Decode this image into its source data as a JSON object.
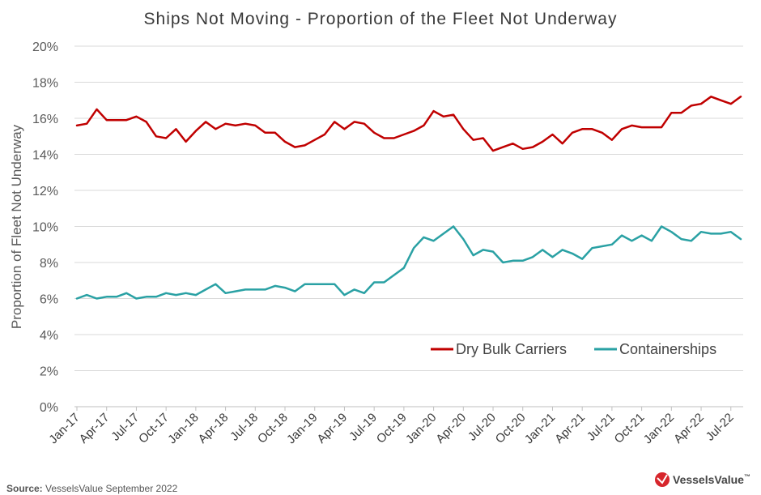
{
  "chart_data": {
    "type": "line",
    "title": "Ships Not Moving - Proportion of the Fleet Not Underway",
    "ylabel": "Proportion of Fleet Not Underway",
    "xlabel": "",
    "ylim": [
      0,
      20
    ],
    "yticks": [
      "0%",
      "2%",
      "4%",
      "6%",
      "8%",
      "10%",
      "12%",
      "14%",
      "16%",
      "18%",
      "20%"
    ],
    "x_tick_labels": [
      "Jan-17",
      "Apr-17",
      "Jul-17",
      "Oct-17",
      "Jan-18",
      "Apr-18",
      "Jul-18",
      "Oct-18",
      "Jan-19",
      "Apr-19",
      "Jul-19",
      "Oct-19",
      "Jan-20",
      "Apr-20",
      "Jul-20",
      "Oct-20",
      "Jan-21",
      "Apr-21",
      "Jul-21",
      "Oct-21",
      "Jan-22",
      "Apr-22",
      "Jul-22"
    ],
    "x_start": "Jan-17",
    "x_end": "Sep-22",
    "grid": "horizontal",
    "legend_position": "bottom-right",
    "series": [
      {
        "name": "Dry Bulk Carriers",
        "color": "#c00000",
        "values": [
          15.6,
          15.7,
          16.5,
          15.9,
          15.9,
          15.9,
          16.1,
          15.8,
          15.0,
          14.9,
          15.4,
          14.7,
          15.3,
          15.8,
          15.4,
          15.7,
          15.6,
          15.7,
          15.6,
          15.2,
          15.2,
          14.7,
          14.4,
          14.5,
          14.8,
          15.1,
          15.8,
          15.4,
          15.8,
          15.7,
          15.2,
          14.9,
          14.9,
          15.1,
          15.3,
          15.6,
          16.4,
          16.1,
          16.2,
          15.4,
          14.8,
          14.9,
          14.2,
          14.4,
          14.6,
          14.3,
          14.4,
          14.7,
          15.1,
          14.6,
          15.2,
          15.4,
          15.4,
          15.2,
          14.8,
          15.4,
          15.6,
          15.5,
          15.5,
          15.5,
          16.3,
          16.3,
          16.7,
          16.8,
          17.2,
          17.0,
          16.8,
          17.2
        ]
      },
      {
        "name": "Containerships",
        "color": "#2aa1a4",
        "values": [
          6.0,
          6.2,
          6.0,
          6.1,
          6.1,
          6.3,
          6.0,
          6.1,
          6.1,
          6.3,
          6.2,
          6.3,
          6.2,
          6.5,
          6.8,
          6.3,
          6.4,
          6.5,
          6.5,
          6.5,
          6.7,
          6.6,
          6.4,
          6.8,
          6.8,
          6.8,
          6.8,
          6.2,
          6.5,
          6.3,
          6.9,
          6.9,
          7.3,
          7.7,
          8.8,
          9.4,
          9.2,
          9.6,
          10.0,
          9.3,
          8.4,
          8.7,
          8.6,
          8.0,
          8.1,
          8.1,
          8.3,
          8.7,
          8.3,
          8.7,
          8.5,
          8.2,
          8.8,
          8.9,
          9.0,
          9.5,
          9.2,
          9.5,
          9.2,
          10.0,
          9.7,
          9.3,
          9.2,
          9.7,
          9.6,
          9.6,
          9.7,
          9.3
        ]
      }
    ]
  },
  "footer": {
    "source_label": "Source:",
    "source_text": " VesselsValue September 2022",
    "brand": "VesselsValue",
    "brand_tm": "™"
  }
}
